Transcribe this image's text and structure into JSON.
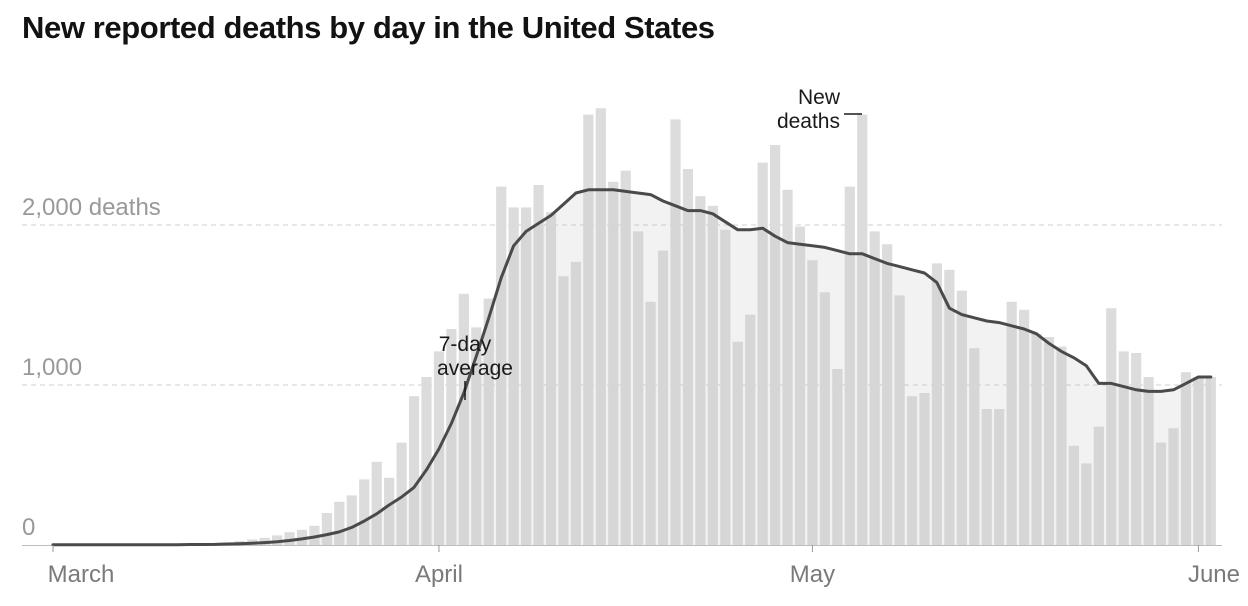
{
  "chart_data": {
    "type": "bar",
    "title": "New reported deaths by day in the United States",
    "y_unit": "deaths",
    "ylim": [
      0,
      2750
    ],
    "grid": true,
    "y_ticks": [
      {
        "value": 0,
        "label": "0"
      },
      {
        "value": 1000,
        "label": "1,000"
      },
      {
        "value": 2000,
        "label": "2,000 deaths"
      }
    ],
    "x_ticks": [
      {
        "date": "2020-03-01",
        "label": "March"
      },
      {
        "date": "2020-04-01",
        "label": "April"
      },
      {
        "date": "2020-05-01",
        "label": "May"
      },
      {
        "date": "2020-06-01",
        "label": "June"
      }
    ],
    "dates": [
      "2020-03-01",
      "2020-03-02",
      "2020-03-03",
      "2020-03-04",
      "2020-03-05",
      "2020-03-06",
      "2020-03-07",
      "2020-03-08",
      "2020-03-09",
      "2020-03-10",
      "2020-03-11",
      "2020-03-12",
      "2020-03-13",
      "2020-03-14",
      "2020-03-15",
      "2020-03-16",
      "2020-03-17",
      "2020-03-18",
      "2020-03-19",
      "2020-03-20",
      "2020-03-21",
      "2020-03-22",
      "2020-03-23",
      "2020-03-24",
      "2020-03-25",
      "2020-03-26",
      "2020-03-27",
      "2020-03-28",
      "2020-03-29",
      "2020-03-30",
      "2020-03-31",
      "2020-04-01",
      "2020-04-02",
      "2020-04-03",
      "2020-04-04",
      "2020-04-05",
      "2020-04-06",
      "2020-04-07",
      "2020-04-08",
      "2020-04-09",
      "2020-04-10",
      "2020-04-11",
      "2020-04-12",
      "2020-04-13",
      "2020-04-14",
      "2020-04-15",
      "2020-04-16",
      "2020-04-17",
      "2020-04-18",
      "2020-04-19",
      "2020-04-20",
      "2020-04-21",
      "2020-04-22",
      "2020-04-23",
      "2020-04-24",
      "2020-04-25",
      "2020-04-26",
      "2020-04-27",
      "2020-04-28",
      "2020-04-29",
      "2020-04-30",
      "2020-05-01",
      "2020-05-02",
      "2020-05-03",
      "2020-05-04",
      "2020-05-05",
      "2020-05-06",
      "2020-05-07",
      "2020-05-08",
      "2020-05-09",
      "2020-05-10",
      "2020-05-11",
      "2020-05-12",
      "2020-05-13",
      "2020-05-14",
      "2020-05-15",
      "2020-05-16",
      "2020-05-17",
      "2020-05-18",
      "2020-05-19",
      "2020-05-20",
      "2020-05-21",
      "2020-05-22",
      "2020-05-23",
      "2020-05-24",
      "2020-05-25",
      "2020-05-26",
      "2020-05-27",
      "2020-05-28",
      "2020-05-29",
      "2020-05-30",
      "2020-05-31",
      "2020-06-01",
      "2020-06-02"
    ],
    "series": [
      {
        "name": "New deaths",
        "type": "bar",
        "color": "#dcdcdc",
        "values": [
          1,
          1,
          1,
          2,
          1,
          2,
          3,
          4,
          4,
          6,
          7,
          9,
          10,
          12,
          16,
          25,
          35,
          45,
          60,
          80,
          95,
          120,
          200,
          270,
          310,
          410,
          520,
          420,
          640,
          930,
          1050,
          1210,
          1350,
          1570,
          1360,
          1540,
          2240,
          2110,
          2110,
          2250,
          2080,
          1680,
          1770,
          2690,
          2730,
          2270,
          2340,
          1960,
          1520,
          1840,
          2660,
          2350,
          2180,
          2120,
          1970,
          1270,
          1440,
          2390,
          2500,
          2220,
          1990,
          1780,
          1580,
          1100,
          2240,
          2690,
          1960,
          1880,
          1560,
          930,
          950,
          1760,
          1720,
          1590,
          1230,
          850,
          850,
          1520,
          1470,
          1320,
          1300,
          1240,
          620,
          510,
          740,
          1480,
          1210,
          1200,
          1050,
          640,
          730,
          1080,
          1050,
          1050
        ]
      },
      {
        "name": "7-day average",
        "type": "line",
        "color": "#4a4a4a",
        "values": [
          1,
          1,
          1,
          1,
          1,
          1,
          1,
          1,
          1,
          2,
          2,
          3,
          3,
          4,
          6,
          8,
          11,
          15,
          20,
          28,
          38,
          50,
          65,
          82,
          110,
          150,
          195,
          250,
          300,
          360,
          470,
          600,
          760,
          950,
          1180,
          1420,
          1670,
          1870,
          1960,
          2010,
          2060,
          2130,
          2200,
          2220,
          2220,
          2220,
          2210,
          2200,
          2190,
          2150,
          2120,
          2090,
          2090,
          2070,
          2020,
          1970,
          1970,
          1980,
          1930,
          1890,
          1880,
          1870,
          1860,
          1840,
          1820,
          1820,
          1790,
          1760,
          1740,
          1720,
          1700,
          1640,
          1480,
          1440,
          1420,
          1400,
          1390,
          1370,
          1350,
          1320,
          1260,
          1210,
          1170,
          1120,
          1010,
          1010,
          990,
          970,
          960,
          960,
          970,
          1010,
          1050,
          1050
        ]
      }
    ],
    "annotations": [
      {
        "target": "7-day average",
        "lines": [
          "7-day",
          "average"
        ]
      },
      {
        "target": "New deaths",
        "lines": [
          "New",
          "deaths"
        ]
      }
    ]
  }
}
